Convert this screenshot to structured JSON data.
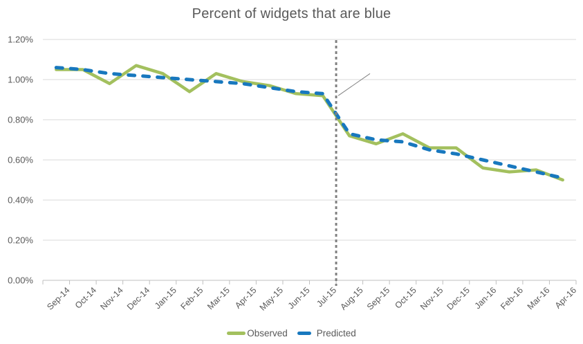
{
  "title": "Percent of widgets that are blue",
  "colors": {
    "title_text": "#595959",
    "axis_text": "#595959",
    "gridline": "#D9D9D9",
    "axis_line": "#BFBFBF",
    "divider_line": "#808080",
    "leader_line": "#808080",
    "observed": "#A3C05E",
    "predicted": "#1878BE"
  },
  "chart_data": {
    "type": "line",
    "title": "Percent of widgets that are blue",
    "xlabel": "",
    "ylabel": "",
    "grid": true,
    "legend_position": "bottom",
    "ylim": [
      0,
      1.2
    ],
    "y_unit": "percent",
    "y_tick_labels": [
      "0.00%",
      "0.20%",
      "0.40%",
      "0.60%",
      "0.80%",
      "1.00%",
      "1.20%"
    ],
    "y_tick_values": [
      0,
      0.2,
      0.4,
      0.6,
      0.8,
      1.0,
      1.2
    ],
    "categories": [
      "Sep-14",
      "Oct-14",
      "Nov-14",
      "Dec-14",
      "Jan-15",
      "Feb-15",
      "Mar-15",
      "Apr-15",
      "May-15",
      "Jun-15",
      "Jul-15",
      "Aug-15",
      "Sep-15",
      "Oct-15",
      "Nov-15",
      "Dec-15",
      "Jan-16",
      "Feb-16",
      "Mar-16",
      "Apr-16"
    ],
    "series": [
      {
        "name": "Observed",
        "color": "#A3C05E",
        "line_style": "solid",
        "values": [
          1.05,
          1.05,
          0.98,
          1.07,
          1.03,
          0.94,
          1.03,
          0.99,
          0.97,
          0.93,
          0.92,
          0.72,
          0.68,
          0.73,
          0.66,
          0.66,
          0.56,
          0.54,
          0.55,
          0.5
        ]
      },
      {
        "name": "Predicted",
        "color": "#1878BE",
        "line_style": "dashed",
        "values": [
          1.06,
          1.05,
          1.03,
          1.02,
          1.01,
          1.0,
          0.99,
          0.98,
          0.96,
          0.94,
          0.93,
          0.73,
          0.7,
          0.69,
          0.65,
          0.63,
          0.6,
          0.57,
          0.54,
          0.51
        ]
      }
    ],
    "annotations": {
      "vertical_divider_after_category": "Jul-15",
      "leader_line": {
        "from_value": 0.92,
        "to_value": 1.03
      }
    }
  }
}
